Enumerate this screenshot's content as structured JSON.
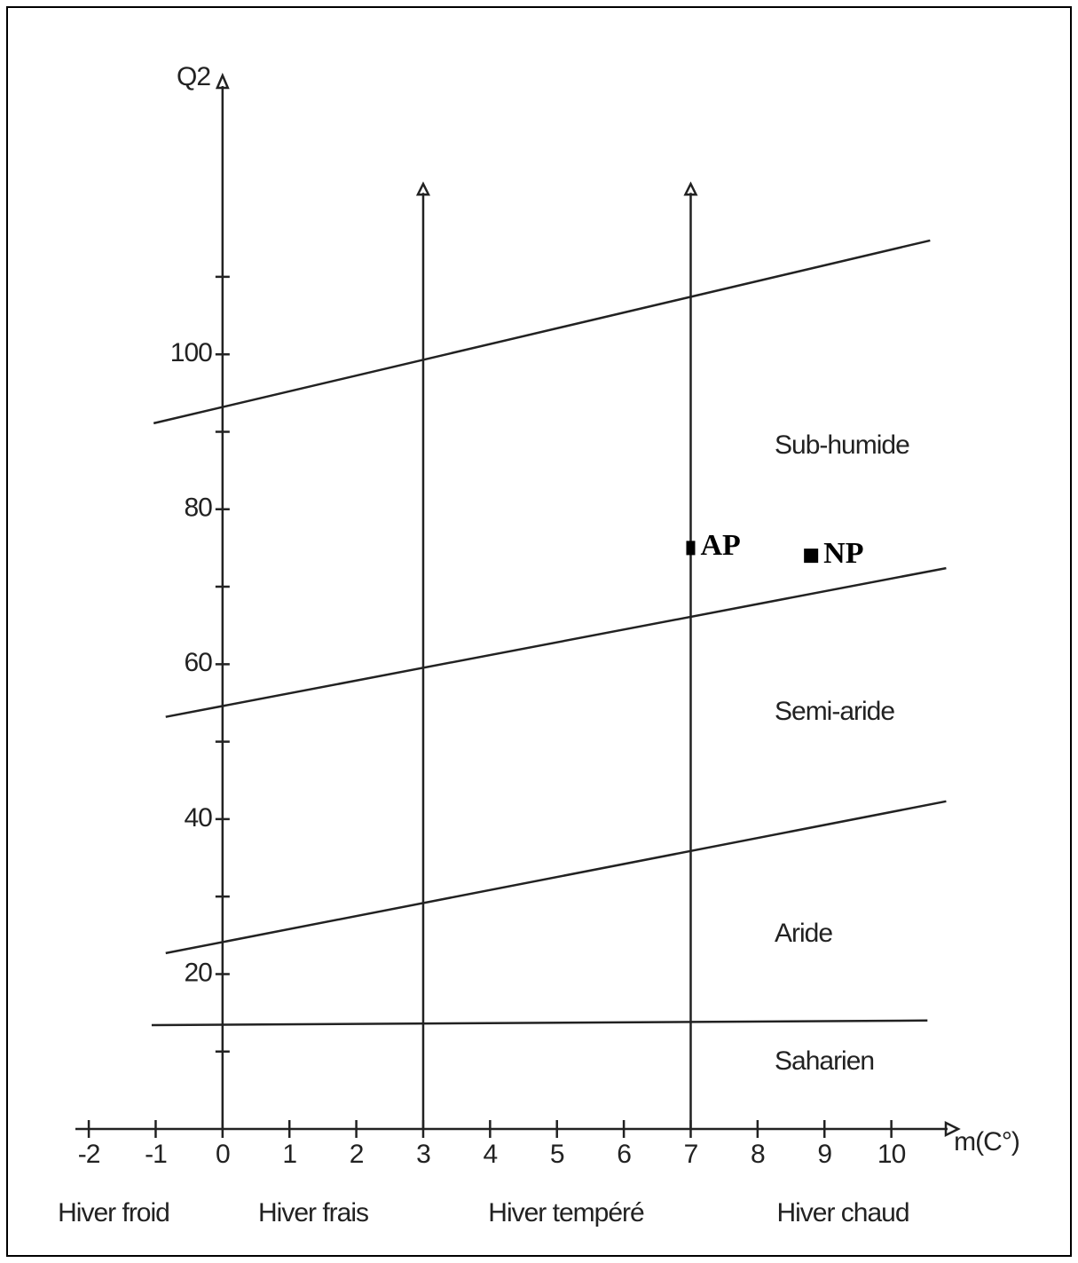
{
  "chart_data": {
    "type": "scatter",
    "x_label": "m(C°)",
    "y_label": "Q2",
    "xlim": [
      -2.2,
      11
    ],
    "ylim": [
      0,
      136
    ],
    "xticks": [
      -2,
      -1,
      0,
      1,
      2,
      3,
      4,
      5,
      6,
      7,
      8,
      9,
      10
    ],
    "yticks": [
      20,
      40,
      60,
      80,
      100
    ],
    "yticks_minor": [
      10,
      30,
      50,
      70,
      90,
      110
    ],
    "series": [
      {
        "name": "AP",
        "color": "#000000",
        "x": [
          7
        ],
        "values": [
          75
        ]
      },
      {
        "name": "NP",
        "color": "#000000",
        "x": [
          8.8
        ],
        "values": [
          74
        ]
      }
    ],
    "boundaries": [
      {
        "x": [
          -1.03,
          10.58
        ],
        "values": [
          91.1,
          114.7
        ]
      },
      {
        "x": [
          -0.85,
          10.82
        ],
        "values": [
          53.2,
          72.4
        ]
      },
      {
        "x": [
          -0.85,
          10.82
        ],
        "values": [
          22.7,
          42.3
        ]
      },
      {
        "x": [
          -1.06,
          10.54
        ],
        "values": [
          13.4,
          14.0
        ]
      }
    ],
    "vlines": {
      "x": [
        3,
        7
      ],
      "top": 122
    },
    "zones": [
      "Sub-humide",
      "Semi-aride",
      "Aride",
      "Saharien"
    ],
    "winters": [
      "Hiver froid",
      "Hiver frais",
      "Hiver tempéré",
      "Hiver chaud"
    ]
  }
}
